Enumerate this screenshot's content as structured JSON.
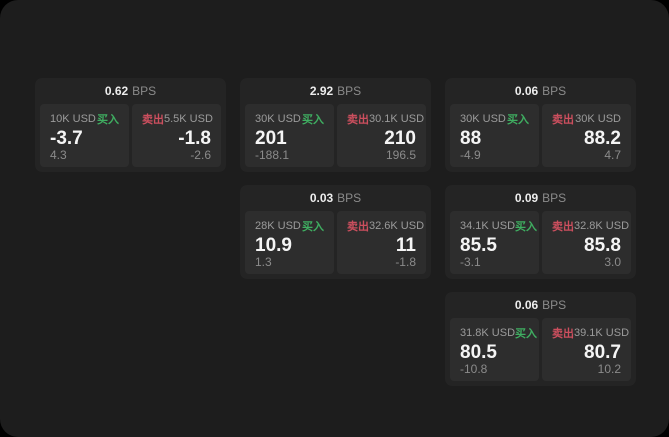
{
  "labels": {
    "bps": "BPS",
    "buy": "买入",
    "sell": "卖出"
  },
  "colors": {
    "window_background": "#1d1d1d",
    "card_background": "#242424",
    "panel_background": "#2d2d2d",
    "buy_green": "#3fae61",
    "sell_red": "#cc4f5e",
    "bright_text": "#f5f5f5",
    "muted_text": "#8b8b8b"
  },
  "cards": [
    {
      "spread": "0.62",
      "buy": {
        "size": "10K USD",
        "price": "-3.7",
        "change": "4.3"
      },
      "sell": {
        "size": "5.5K USD",
        "price": "-1.8",
        "change": "-2.6"
      }
    },
    {
      "spread": "2.92",
      "buy": {
        "size": "30K USD",
        "price": "201",
        "change": "-188.1"
      },
      "sell": {
        "size": "30.1K USD",
        "price": "210",
        "change": "196.5"
      }
    },
    {
      "spread": "0.06",
      "buy": {
        "size": "30K USD",
        "price": "88",
        "change": "-4.9"
      },
      "sell": {
        "size": "30K USD",
        "price": "88.2",
        "change": "4.7"
      }
    },
    {
      "spread": "0.03",
      "buy": {
        "size": "28K USD",
        "price": "10.9",
        "change": "1.3"
      },
      "sell": {
        "size": "32.6K USD",
        "price": "11",
        "change": "-1.8"
      }
    },
    {
      "spread": "0.09",
      "buy": {
        "size": "34.1K USD",
        "price": "85.5",
        "change": "-3.1"
      },
      "sell": {
        "size": "32.8K USD",
        "price": "85.8",
        "change": "3.0"
      }
    },
    {
      "spread": "0.06",
      "buy": {
        "size": "31.8K USD",
        "price": "80.5",
        "change": "-10.8"
      },
      "sell": {
        "size": "39.1K USD",
        "price": "80.7",
        "change": "10.2"
      }
    }
  ]
}
